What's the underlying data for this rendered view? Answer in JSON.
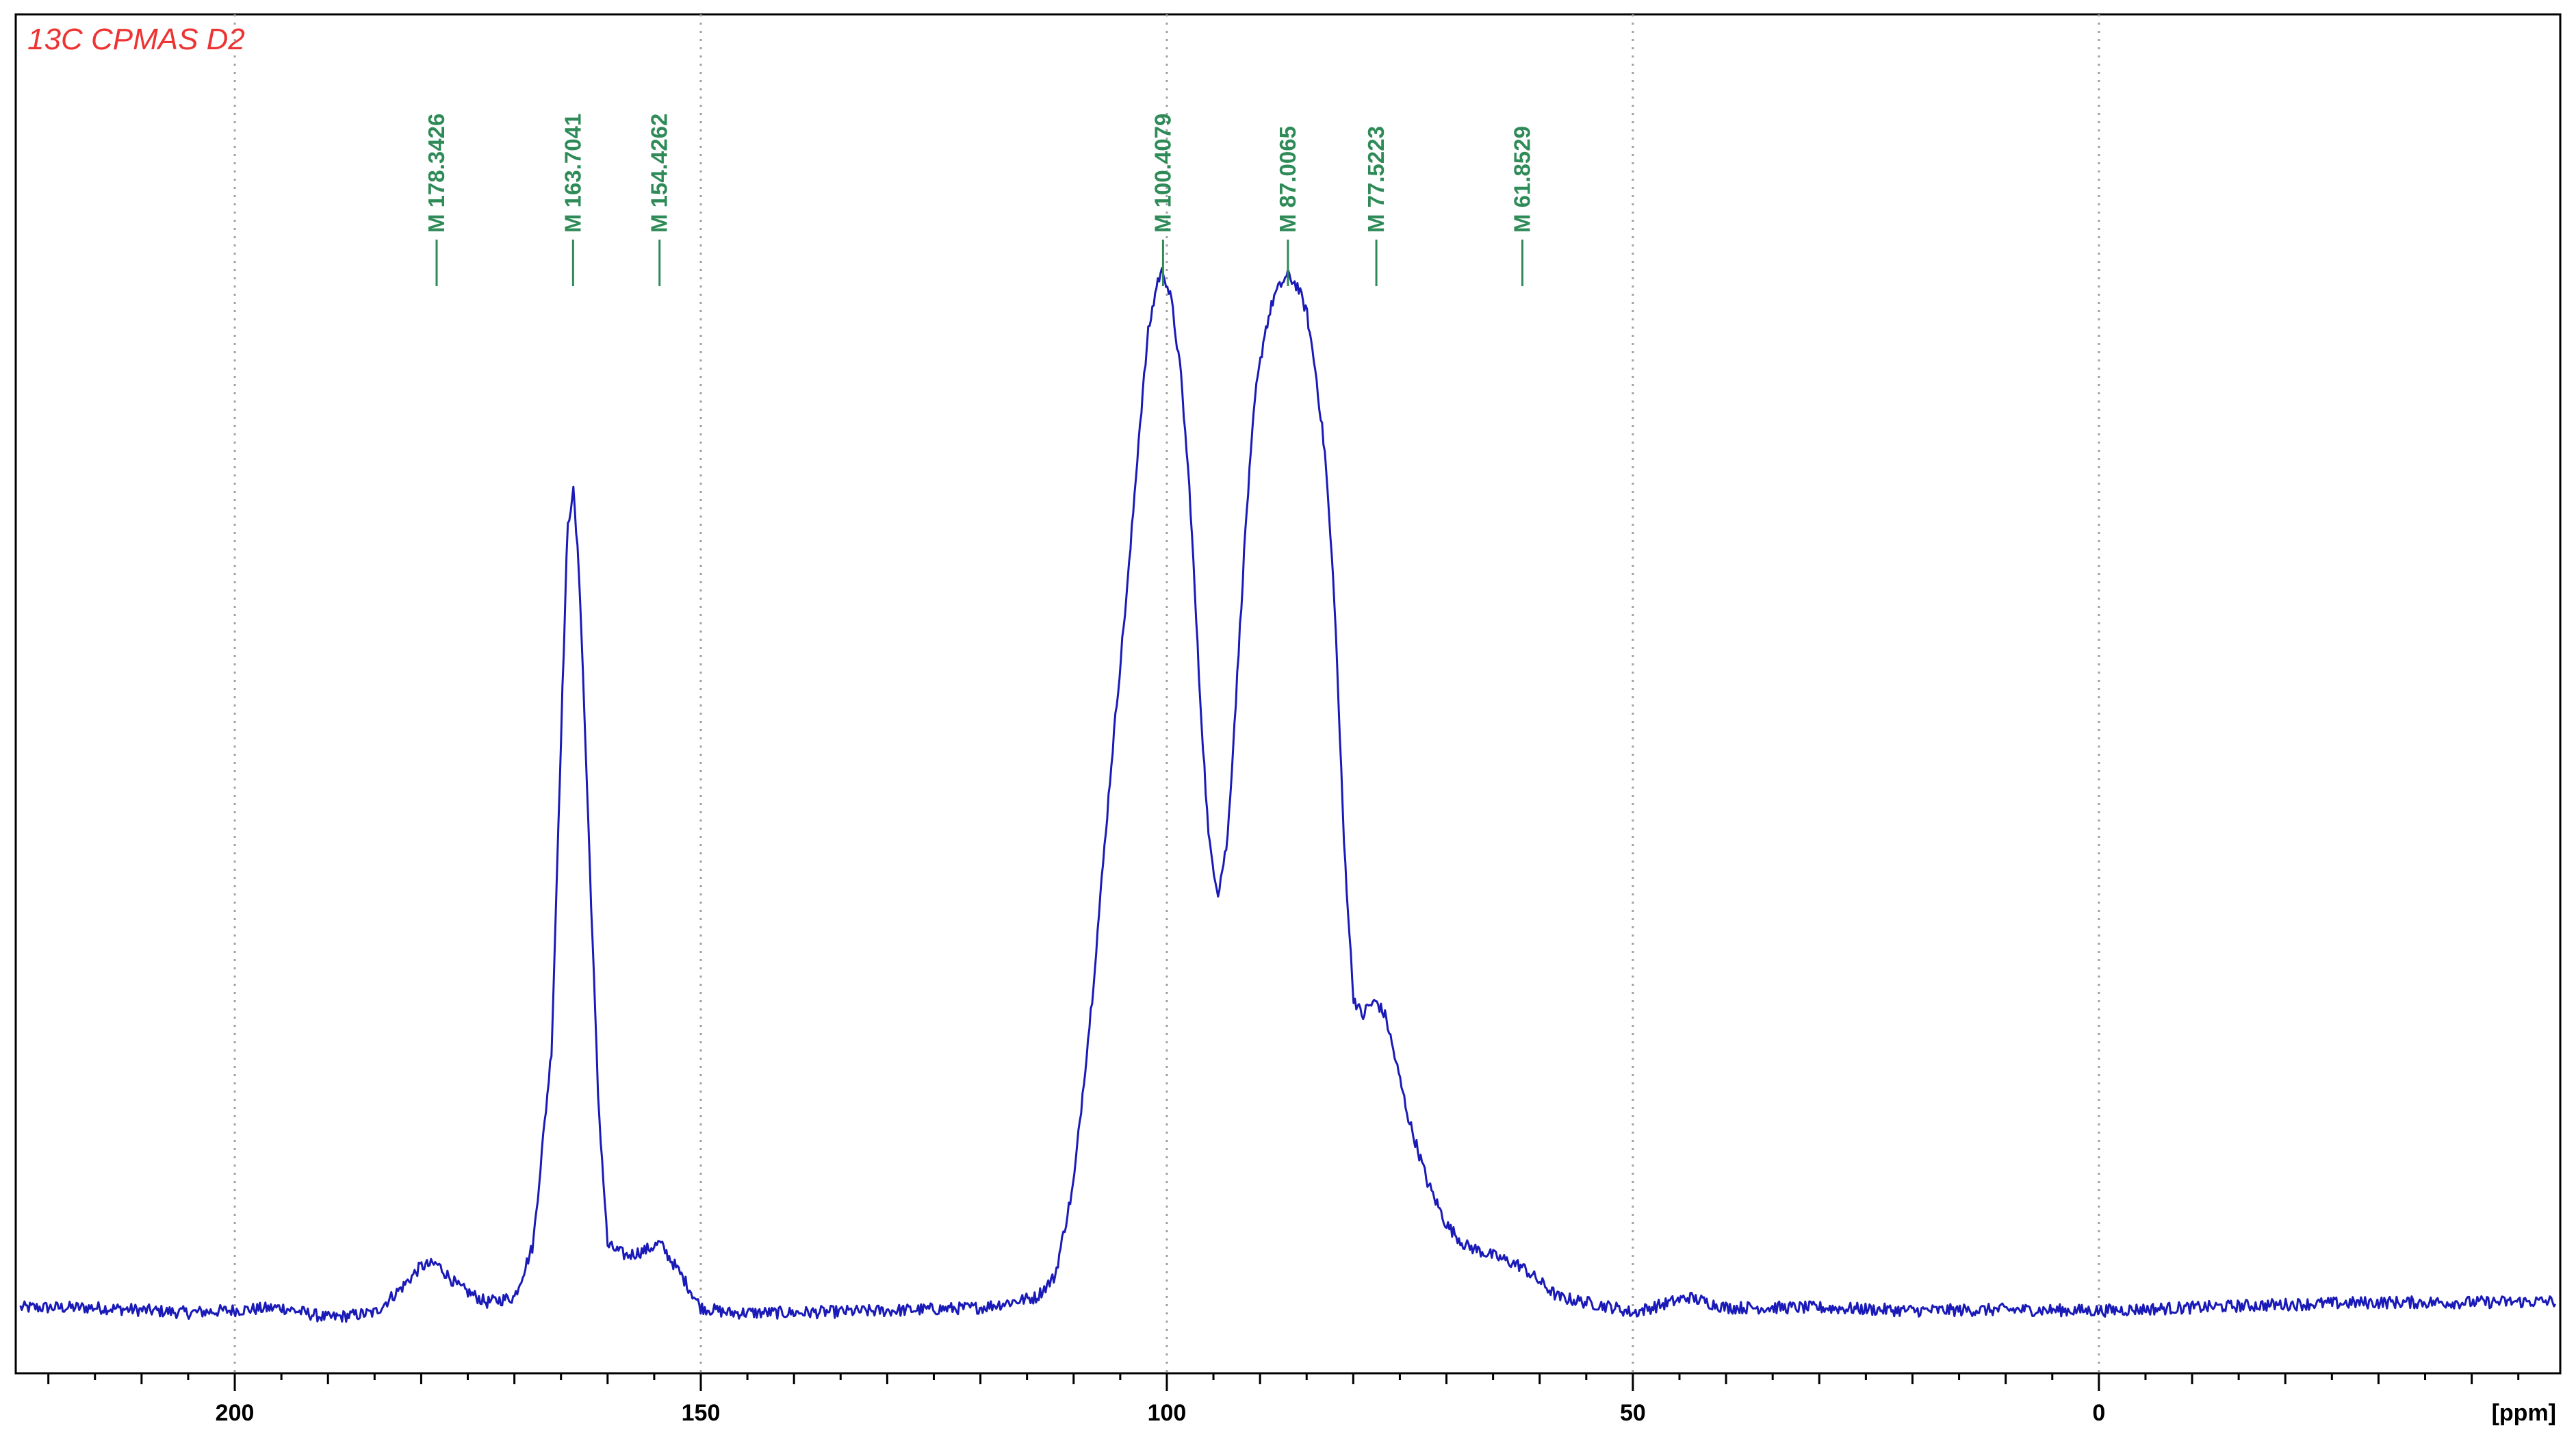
{
  "chart_data": {
    "type": "line",
    "title": "13C CPMAS D2",
    "xlabel": "[ppm]",
    "ylabel": "",
    "x_reversed": true,
    "xlim": [
      223.5,
      -49.5
    ],
    "ylim": [
      -0.05,
      1.05
    ],
    "x_ticks": [
      {
        "value": 200,
        "label": "200"
      },
      {
        "value": 150,
        "label": "150"
      },
      {
        "value": 100,
        "label": "100"
      },
      {
        "value": 50,
        "label": "50"
      },
      {
        "value": 0,
        "label": "0"
      }
    ],
    "minor_tick_step": 5,
    "grid": true,
    "grid_style": "dotted vertical lines at major ticks",
    "peak_labels": [
      {
        "ppm": 178.3426,
        "label": "M 178.3426"
      },
      {
        "ppm": 163.7041,
        "label": "M 163.7041"
      },
      {
        "ppm": 154.4262,
        "label": "M 154.4262"
      },
      {
        "ppm": 100.4079,
        "label": "M 100.4079"
      },
      {
        "ppm": 87.0065,
        "label": "M 87.0065"
      },
      {
        "ppm": 77.5223,
        "label": "M 77.5223"
      },
      {
        "ppm": 61.8529,
        "label": "M 61.8529"
      }
    ],
    "series": [
      {
        "x": [
          223,
          215,
          205,
          195,
          190,
          185,
          182,
          180,
          178.3,
          176,
          173,
          170,
          168,
          166,
          165,
          164.3,
          163.7,
          163,
          162,
          161,
          160,
          158,
          156,
          154.4,
          152,
          150,
          147,
          140,
          130,
          120,
          114,
          112,
          110,
          108,
          106,
          104,
          103,
          102,
          101,
          100.4,
          99.5,
          98.5,
          97.5,
          96.5,
          95.5,
          94.5,
          93.5,
          92.5,
          91.5,
          90.5,
          89.5,
          88.5,
          87.5,
          87.0,
          86,
          85,
          84,
          83,
          82,
          81,
          80,
          79,
          78.5,
          77.5,
          76.5,
          75.5,
          74,
          72,
          70,
          68,
          65,
          62,
          60,
          58,
          55,
          52,
          50,
          46,
          44,
          40,
          30,
          20,
          10,
          0,
          -10,
          -20,
          -30,
          -40,
          -49
        ],
        "y": [
          0.0,
          0.0,
          -0.005,
          0.0,
          -0.01,
          -0.005,
          0.02,
          0.04,
          0.042,
          0.02,
          0.005,
          0.01,
          0.06,
          0.25,
          0.55,
          0.75,
          0.79,
          0.7,
          0.45,
          0.2,
          0.06,
          0.05,
          0.055,
          0.062,
          0.03,
          0.0,
          -0.005,
          -0.005,
          -0.003,
          0.0,
          0.01,
          0.03,
          0.12,
          0.3,
          0.52,
          0.72,
          0.84,
          0.94,
          0.99,
          1.0,
          0.97,
          0.9,
          0.78,
          0.6,
          0.45,
          0.4,
          0.45,
          0.6,
          0.76,
          0.88,
          0.94,
          0.975,
          0.99,
          0.995,
          0.985,
          0.96,
          0.9,
          0.82,
          0.68,
          0.45,
          0.3,
          0.28,
          0.29,
          0.295,
          0.28,
          0.24,
          0.18,
          0.12,
          0.08,
          0.06,
          0.05,
          0.04,
          0.025,
          0.01,
          0.005,
          0.0,
          -0.005,
          0.005,
          0.01,
          0.0,
          0.0,
          -0.003,
          -0.002,
          -0.003,
          0.0,
          0.003,
          0.005,
          0.005,
          0.006
        ],
        "color": "#1a1ab8"
      }
    ]
  },
  "colors": {
    "spectrum": "#1a1ab8",
    "title": "#ee3333",
    "peak_label": "#2e8b57",
    "grid": "#a0a0a0",
    "axis": "#000000"
  }
}
